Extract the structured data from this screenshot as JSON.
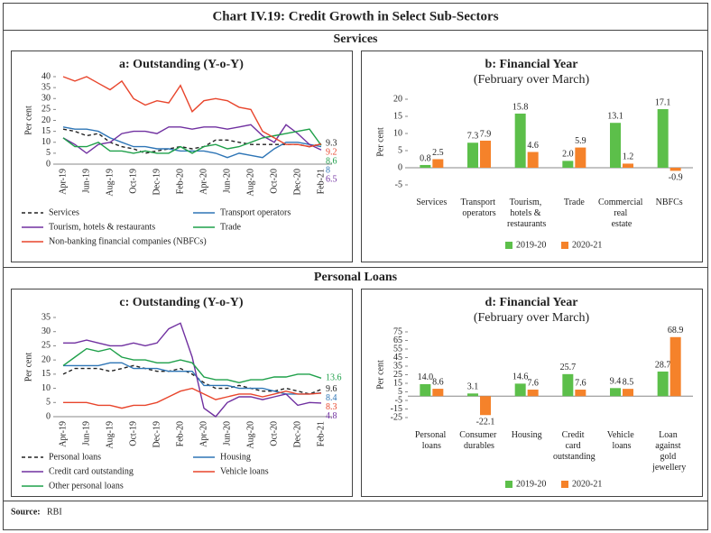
{
  "title": "Chart IV.19: Credit Growth in Select Sub-Sectors",
  "sections": [
    "Services",
    "Personal Loans"
  ],
  "source_label": "Source:",
  "source": "RBI",
  "chart_data": [
    {
      "type": "line",
      "title": "a: Outstanding (Y-o-Y)",
      "y_label": "Per cent",
      "categories": [
        "Apr-19",
        null,
        "Jun-19",
        null,
        "Aug-19",
        null,
        "Oct-19",
        null,
        "Dec-19",
        null,
        "Feb-20",
        null,
        "Apr-20",
        null,
        "Jun-20",
        null,
        "Aug-20",
        null,
        "Oct-20",
        null,
        "Dec-20",
        null,
        "Feb-21"
      ],
      "ylim": [
        0,
        40
      ],
      "yticks": [
        0,
        5,
        10,
        15,
        20,
        25,
        30,
        35,
        40
      ],
      "series": [
        {
          "name": "Services",
          "color": "#222222",
          "dash": true,
          "values": [
            16,
            15,
            13,
            14,
            10,
            8,
            7,
            5,
            6,
            7,
            8,
            7,
            8,
            11,
            11,
            10,
            9,
            9,
            9,
            9,
            9,
            8,
            9.3
          ]
        },
        {
          "name": "Transport operators",
          "color": "#2e75b6",
          "values": [
            17,
            16,
            16,
            15,
            12,
            10,
            8,
            8,
            7,
            7,
            6,
            6,
            6,
            5,
            3,
            5,
            4,
            3,
            7,
            10,
            10,
            9,
            8.0
          ]
        },
        {
          "name": "Tourism, hotels & restaurants",
          "color": "#7030a0",
          "values": [
            12,
            9,
            5,
            9,
            10,
            14,
            15,
            15,
            14,
            17,
            17,
            16,
            17,
            17,
            16,
            17,
            18,
            13,
            10,
            18,
            14,
            9,
            6.5
          ]
        },
        {
          "name": "Trade",
          "color": "#1fa04a",
          "values": [
            12,
            8,
            8,
            10,
            6,
            6,
            5,
            6,
            5,
            5,
            8,
            5,
            8,
            9,
            7,
            8,
            10,
            12,
            13,
            14,
            15,
            16,
            8.6
          ]
        },
        {
          "name": "Non-banking financial companies (NBFCs)",
          "color": "#e8452c",
          "values": [
            40,
            38,
            40,
            37,
            34,
            38,
            30,
            27,
            29,
            28,
            36,
            24,
            29,
            30,
            29,
            26,
            25,
            15,
            12,
            9,
            9,
            8,
            9.2
          ]
        }
      ]
    },
    {
      "type": "bar",
      "title": "b: Financial Year",
      "subtitle": "(February over March)",
      "y_label": "Per cent",
      "categories": [
        "Services",
        "Transport operators",
        "Tourism, hotels & restaurants",
        "Trade",
        "Commercial real estate",
        "NBFCs"
      ],
      "ylim": [
        -5,
        20
      ],
      "yticks": [
        -5,
        0,
        5,
        10,
        15,
        20
      ],
      "series": [
        {
          "name": "2019-20",
          "color": "#5cbf4a",
          "values": [
            0.8,
            7.3,
            15.8,
            2.0,
            13.1,
            17.1
          ],
          "value_labels": [
            "0.8",
            "7.3",
            "15.8",
            "2.0",
            "13.1",
            "17.1"
          ]
        },
        {
          "name": "2020-21",
          "color": "#f5822a",
          "values": [
            2.5,
            7.9,
            4.6,
            5.9,
            1.2,
            -0.9
          ],
          "value_labels": [
            "2.5",
            "7.9",
            "4.6",
            "5.9",
            "1.2",
            "-0.9"
          ]
        }
      ]
    },
    {
      "type": "line",
      "title": "c: Outstanding (Y-o-Y)",
      "y_label": "Per cent",
      "categories": [
        "Apr-19",
        null,
        "Jun-19",
        null,
        "Aug-19",
        null,
        "Oct-19",
        null,
        "Dec-19",
        null,
        "Feb-20",
        null,
        "Apr-20",
        null,
        "Jun-20",
        null,
        "Aug-20",
        null,
        "Oct-20",
        null,
        "Dec-20",
        null,
        "Feb-21"
      ],
      "ylim": [
        0,
        35
      ],
      "yticks": [
        0,
        5,
        10,
        15,
        20,
        25,
        30,
        35
      ],
      "series": [
        {
          "name": "Personal loans",
          "color": "#222222",
          "dash": true,
          "values": [
            15,
            17,
            17,
            17,
            16,
            17,
            18,
            17,
            16,
            16,
            17,
            15,
            12,
            10,
            10,
            11,
            10,
            9,
            9,
            10,
            9,
            8,
            9.6
          ]
        },
        {
          "name": "Housing",
          "color": "#2e75b6",
          "values": [
            18,
            18,
            18,
            18,
            19,
            19,
            17,
            17,
            17,
            16,
            16,
            16,
            11,
            11,
            11,
            10,
            10,
            10,
            9,
            8,
            8,
            8,
            8.4
          ]
        },
        {
          "name": "Credit card outstanding",
          "color": "#7030a0",
          "values": [
            26,
            26,
            27,
            26,
            25,
            25,
            26,
            25,
            26,
            31,
            33,
            21,
            3,
            0,
            5,
            7,
            7,
            6,
            7,
            8,
            4,
            5,
            4.8
          ]
        },
        {
          "name": "Vehicle loans",
          "color": "#e8452c",
          "values": [
            5,
            5,
            5,
            4,
            4,
            3,
            4,
            4,
            5,
            7,
            9,
            10,
            8,
            6,
            7,
            8,
            8,
            7,
            8,
            9,
            8,
            8,
            8.3
          ]
        },
        {
          "name": "Other personal loans",
          "color": "#1fa04a",
          "values": [
            18,
            21,
            24,
            23,
            24,
            21,
            20,
            20,
            19,
            19,
            20,
            19,
            14,
            13,
            13,
            12,
            13,
            13,
            14,
            14,
            15,
            15,
            13.6
          ]
        }
      ]
    },
    {
      "type": "bar",
      "title": "d: Financial Year",
      "subtitle": "(February over March)",
      "y_label": "Per cent",
      "categories": [
        "Personal loans",
        "Consumer durables",
        "Housing",
        "Credit card outstanding",
        "Vehicle loans",
        "Loan against gold jewellery"
      ],
      "ylim": [
        -25,
        75
      ],
      "yticks": [
        -25,
        -15,
        -5,
        5,
        15,
        25,
        35,
        45,
        55,
        65,
        75
      ],
      "series": [
        {
          "name": "2019-20",
          "color": "#5cbf4a",
          "values": [
            14.0,
            3.1,
            14.6,
            25.7,
            9.4,
            28.7
          ],
          "value_labels": [
            "14.0",
            "3.1",
            "14.6",
            "25.7",
            "9.4",
            "28.7"
          ]
        },
        {
          "name": "2020-21",
          "color": "#f5822a",
          "values": [
            8.6,
            -22.1,
            7.6,
            7.6,
            8.5,
            68.9
          ],
          "value_labels": [
            "8.6",
            "-22.1",
            "7.6",
            "7.6",
            "8.5",
            "68.9"
          ]
        }
      ]
    }
  ]
}
